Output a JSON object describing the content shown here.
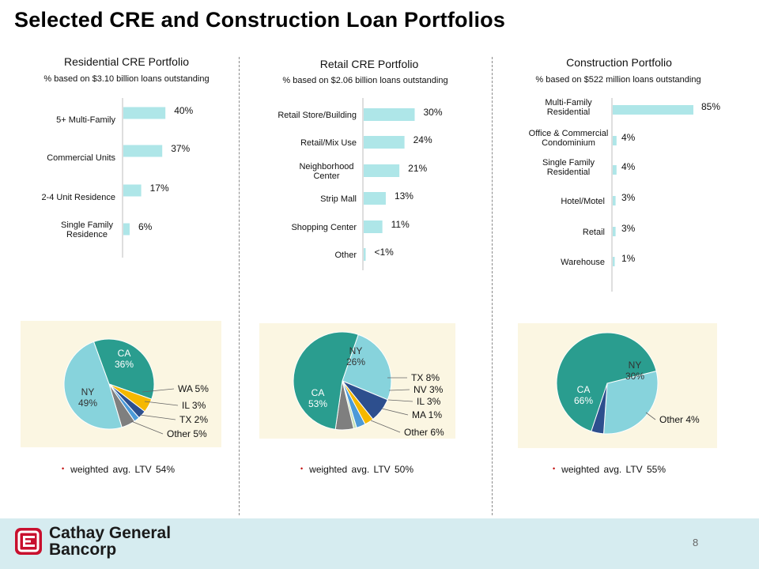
{
  "page": {
    "title": "Selected CRE and Construction Loan Portfolios",
    "page_number": "8"
  },
  "brand": {
    "line1": "Cathay General",
    "line2": "Bancorp",
    "accent": "#c8102e"
  },
  "colors": {
    "bar": "#aee6e8",
    "teal": "#2a9d8f",
    "light_blue": "#87d3dc",
    "navy": "#2d4f8e",
    "gold": "#f5b800",
    "mid_blue": "#4c9ad8",
    "gray": "#7f7f7f",
    "light_green": "#c6e0b4",
    "pie_bg": "#fbf6e2"
  },
  "columns": [
    {
      "title": "Residential CRE Portfolio",
      "subtitle": "% based on $3.10 billion loans outstanding",
      "ltv": "weighted avg. LTV 54%"
    },
    {
      "title": "Retail CRE Portfolio",
      "subtitle": "% based on $2.06 billion loans outstanding",
      "ltv": "weighted avg. LTV 50%"
    },
    {
      "title": "Construction Portfolio",
      "subtitle": "% based on $522 million loans outstanding",
      "ltv": "weighted avg. LTV 55%"
    }
  ],
  "chart_data": [
    {
      "type": "bar",
      "orientation": "horizontal",
      "title": "Residential CRE Portfolio",
      "categories": [
        "5+ Multi-Family",
        "Commercial Units",
        "2-4 Unit Residence",
        "Single Family Residence"
      ],
      "values": [
        40,
        37,
        17,
        6
      ],
      "labels": [
        "40%",
        "37%",
        "17%",
        "6%"
      ],
      "unit": "%"
    },
    {
      "type": "bar",
      "orientation": "horizontal",
      "title": "Retail CRE Portfolio",
      "categories": [
        "Retail Store/Building",
        "Retail/Mix Use",
        "Neighborhood Center",
        "Strip Mall",
        "Shopping Center",
        "Other"
      ],
      "values": [
        30,
        24,
        21,
        13,
        11,
        0.5
      ],
      "labels": [
        "30%",
        "24%",
        "21%",
        "13%",
        "11%",
        "<1%"
      ],
      "unit": "%"
    },
    {
      "type": "bar",
      "orientation": "horizontal",
      "title": "Construction Portfolio",
      "categories": [
        "Multi-Family Residential",
        "Office & Commercial Condominium",
        "Single Family Residential",
        "Hotel/Motel",
        "Retail",
        "Warehouse"
      ],
      "values": [
        85,
        4,
        4,
        3,
        3,
        1
      ],
      "labels": [
        "85%",
        "4%",
        "4%",
        "3%",
        "3%",
        "1%"
      ],
      "unit": "%"
    },
    {
      "type": "pie",
      "slices": [
        {
          "name": "CA",
          "value": 36,
          "label": "36%",
          "color": "#2a9d8f"
        },
        {
          "name": "WA",
          "value": 5,
          "label": "5%",
          "color": "#f5b800"
        },
        {
          "name": "IL",
          "value": 3,
          "label": "3%",
          "color": "#2d4f8e"
        },
        {
          "name": "TX",
          "value": 2,
          "label": "2%",
          "color": "#4c9ad8"
        },
        {
          "name": "Other",
          "value": 5,
          "label": "5%",
          "color": "#7f7f7f"
        },
        {
          "name": "NY",
          "value": 49,
          "label": "49%",
          "color": "#87d3dc"
        }
      ]
    },
    {
      "type": "pie",
      "slices": [
        {
          "name": "NY",
          "value": 26,
          "label": "26%",
          "color": "#87d3dc"
        },
        {
          "name": "TX",
          "value": 8,
          "label": "8%",
          "color": "#2d4f8e"
        },
        {
          "name": "NV",
          "value": 3,
          "label": "3%",
          "color": "#f5b800"
        },
        {
          "name": "IL",
          "value": 3,
          "label": "3%",
          "color": "#4c9ad8"
        },
        {
          "name": "MA",
          "value": 1,
          "label": "1%",
          "color": "#c6e0b4"
        },
        {
          "name": "Other",
          "value": 6,
          "label": "6%",
          "color": "#7f7f7f"
        },
        {
          "name": "CA",
          "value": 53,
          "label": "53%",
          "color": "#2a9d8f"
        }
      ]
    },
    {
      "type": "pie",
      "slices": [
        {
          "name": "NY",
          "value": 30,
          "label": "30%",
          "color": "#87d3dc"
        },
        {
          "name": "Other",
          "value": 4,
          "label": "4%",
          "color": "#2d4f8e"
        },
        {
          "name": "CA",
          "value": 66,
          "label": "66%",
          "color": "#2a9d8f"
        }
      ]
    }
  ]
}
